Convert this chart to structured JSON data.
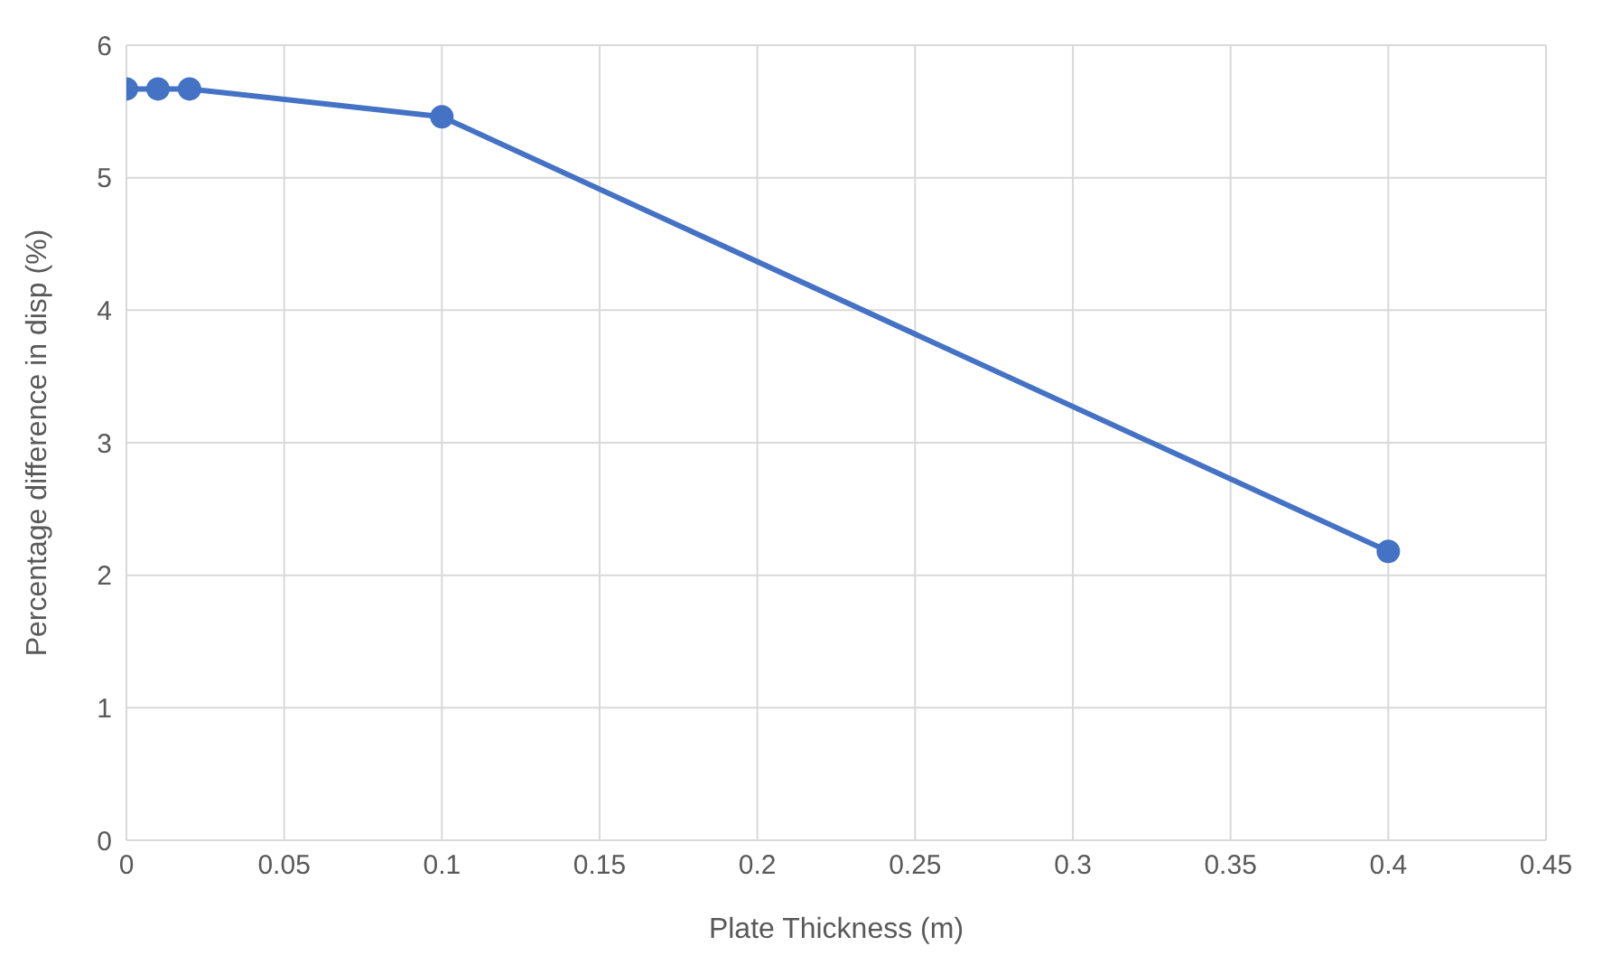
{
  "chart_data": {
    "type": "line",
    "xlabel": "Plate Thickness (m)",
    "ylabel": "Percentage difference in disp (%)",
    "x": [
      0,
      0.01,
      0.02,
      0.1,
      0.4
    ],
    "series": [
      {
        "color": "#4472c4",
        "values": [
          5.67,
          5.67,
          5.67,
          5.46,
          2.18
        ]
      }
    ],
    "xlim": [
      0,
      0.45
    ],
    "xticks": [
      0,
      0.05,
      0.1,
      0.15,
      0.2,
      0.25,
      0.3,
      0.35,
      0.4,
      0.45
    ],
    "ylim": [
      0,
      6
    ],
    "yticks": [
      0,
      1,
      2,
      3,
      4,
      5,
      6
    ],
    "grid": true,
    "marker": "circle",
    "line_style": "solid",
    "legend": false
  }
}
